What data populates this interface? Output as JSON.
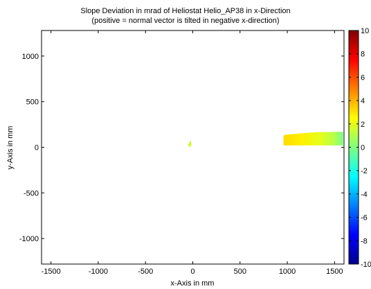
{
  "chart_data": {
    "type": "heatmap",
    "title": "Slope Deviation in mrad of Heliostat Helio_AP38 in x-Direction",
    "subtitle": "(positive = normal vector is tilted in negative x-direction)",
    "xlabel": "x-Axis in mm",
    "ylabel": "y-Axis in mm",
    "xlim": [
      -1600,
      1600
    ],
    "ylim": [
      -1280,
      1280
    ],
    "xticks": [
      -1500,
      -1000,
      -500,
      0,
      500,
      1000,
      1500
    ],
    "xtick_labels": [
      "-1500",
      "-1000",
      "-500",
      "0",
      "500",
      "1000",
      "1500"
    ],
    "yticks": [
      1000,
      500,
      0,
      -500,
      -1000
    ],
    "ytick_labels": [
      "1000",
      "500",
      "0",
      "-500",
      "-1000"
    ],
    "colorbar": {
      "range": [
        -10,
        10
      ],
      "ticks": [
        10,
        8,
        6,
        4,
        2,
        0,
        -2,
        -4,
        -6,
        -8,
        -10
      ],
      "tick_labels": [
        "10",
        "8",
        "6",
        "4",
        "2",
        "0",
        "-2",
        "-4",
        "-6",
        "-8",
        "-10"
      ],
      "colormap": "jet"
    },
    "regions": [
      {
        "kind": "small-patch",
        "polygon": [
          [
            -50,
            10
          ],
          [
            -15,
            10
          ],
          [
            -20,
            80
          ],
          [
            -35,
            55
          ],
          [
            -50,
            30
          ]
        ],
        "value": 1.5
      },
      {
        "kind": "main-patch",
        "x_range": [
          960,
          1590
        ],
        "polygon": [
          [
            960,
            20
          ],
          [
            1590,
            20
          ],
          [
            1590,
            170
          ],
          [
            1300,
            165
          ],
          [
            1000,
            140
          ],
          [
            960,
            130
          ]
        ],
        "value_gradient": [
          {
            "x": 960,
            "value": 3.2
          },
          {
            "x": 1150,
            "value": 2.8
          },
          {
            "x": 1350,
            "value": 2.0
          },
          {
            "x": 1500,
            "value": 1.0
          },
          {
            "x": 1590,
            "value": -0.2
          }
        ]
      }
    ],
    "grid": false,
    "legend": "colorbar-right"
  }
}
